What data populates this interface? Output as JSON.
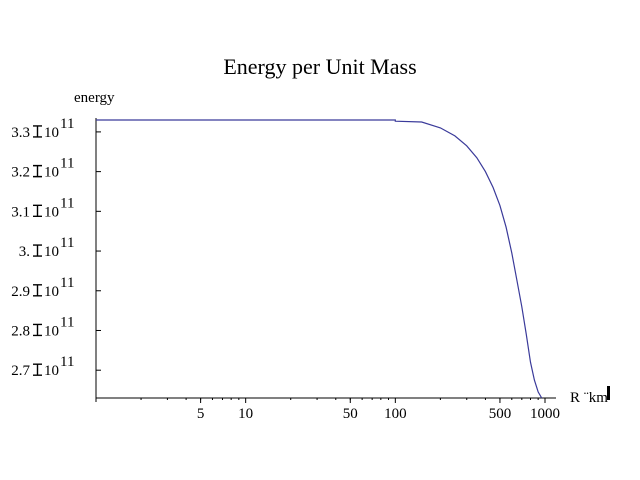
{
  "chart_data": {
    "type": "line",
    "title": "Energy per Unit Mass",
    "ylabel": "energy",
    "xlabel": "R ¨km",
    "x_scale": "log",
    "xlim": [
      1,
      1000
    ],
    "ylim": [
      263000000000.0,
      333500000000.0
    ],
    "x_ticks": [
      {
        "value": 5,
        "label": "5"
      },
      {
        "value": 10,
        "label": "10"
      },
      {
        "value": 50,
        "label": "50"
      },
      {
        "value": 100,
        "label": "100"
      },
      {
        "value": 500,
        "label": "500"
      },
      {
        "value": 1000,
        "label": "1000"
      }
    ],
    "y_ticks": [
      {
        "value": 270000000000.0,
        "mantissa": "2.7",
        "base": "10",
        "exp": "11"
      },
      {
        "value": 280000000000.0,
        "mantissa": "2.8",
        "base": "10",
        "exp": "11"
      },
      {
        "value": 290000000000.0,
        "mantissa": "2.9",
        "base": "10",
        "exp": "11"
      },
      {
        "value": 300000000000.0,
        "mantissa": "3.",
        "base": "10",
        "exp": "11"
      },
      {
        "value": 310000000000.0,
        "mantissa": "3.1",
        "base": "10",
        "exp": "11"
      },
      {
        "value": 320000000000.0,
        "mantissa": "3.2",
        "base": "10",
        "exp": "11"
      },
      {
        "value": 330000000000.0,
        "mantissa": "3.3",
        "base": "10",
        "exp": "11"
      }
    ],
    "series": [
      {
        "color": "#3a3a9a",
        "x": [
          1,
          100,
          100,
          150,
          200,
          250,
          300,
          350,
          400,
          450,
          500,
          550,
          600,
          650,
          700,
          750,
          800,
          850,
          900,
          950
        ],
        "y": [
          333000000000.0,
          333000000000.0,
          332700000000.0,
          332500000000.0,
          331000000000.0,
          329000000000.0,
          326500000000.0,
          323500000000.0,
          320000000000.0,
          316000000000.0,
          311500000000.0,
          306000000000.0,
          299500000000.0,
          292500000000.0,
          286000000000.0,
          279000000000.0,
          272000000000.0,
          267500000000.0,
          264500000000.0,
          263000000000.0
        ]
      }
    ]
  }
}
